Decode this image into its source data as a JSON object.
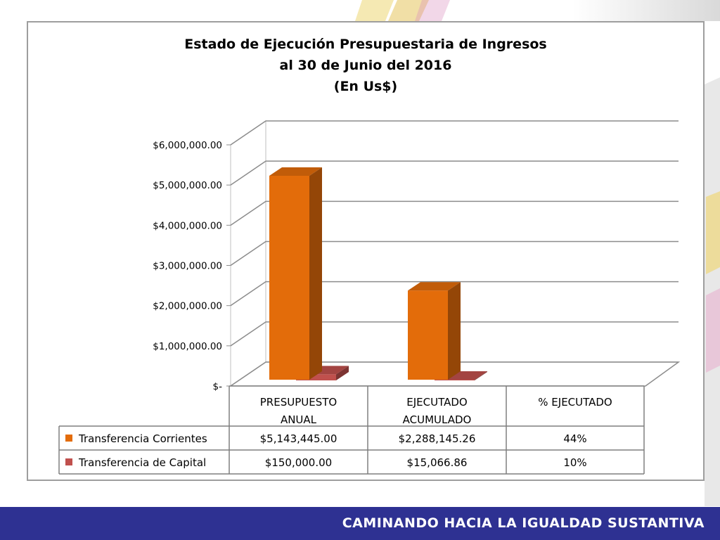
{
  "footer": {
    "slogan": "CAMINANDO HACIA LA IGUALDAD SUSTANTIVA"
  },
  "chart_data": {
    "type": "bar",
    "title": [
      "Estado de Ejecución Presupuestaria de Ingresos",
      "al 30 de Junio del 2016",
      "(En Us$)"
    ],
    "categories": [
      [
        "PRESUPUESTO",
        "ANUAL"
      ],
      [
        "EJECUTADO",
        "ACUMULADO"
      ],
      [
        "% EJECUTADO"
      ]
    ],
    "y_ticks": [
      {
        "value": 0,
        "label": "$-"
      },
      {
        "value": 1000000,
        "label": "$1,000,000.00"
      },
      {
        "value": 2000000,
        "label": "$2,000,000.00"
      },
      {
        "value": 3000000,
        "label": "$3,000,000.00"
      },
      {
        "value": 4000000,
        "label": "$4,000,000.00"
      },
      {
        "value": 5000000,
        "label": "$5,000,000.00"
      },
      {
        "value": 6000000,
        "label": "$6,000,000.00"
      }
    ],
    "ylim": [
      0,
      6000000
    ],
    "grid": true,
    "style": "3d-clustered-column-with-data-table",
    "series": [
      {
        "name": "Transferencia Corrientes",
        "color": "#e36c0a",
        "values": [
          5143445.0,
          2288145.26,
          0.44
        ],
        "table_labels": [
          "$5,143,445.00",
          "$2,288,145.26",
          "44%"
        ]
      },
      {
        "name": "Transferencia de Capital",
        "color": "#c0504d",
        "values": [
          150000.0,
          15066.86,
          0.1
        ],
        "table_labels": [
          "$150,000.00",
          "$15,066.86",
          "10%"
        ]
      }
    ]
  }
}
